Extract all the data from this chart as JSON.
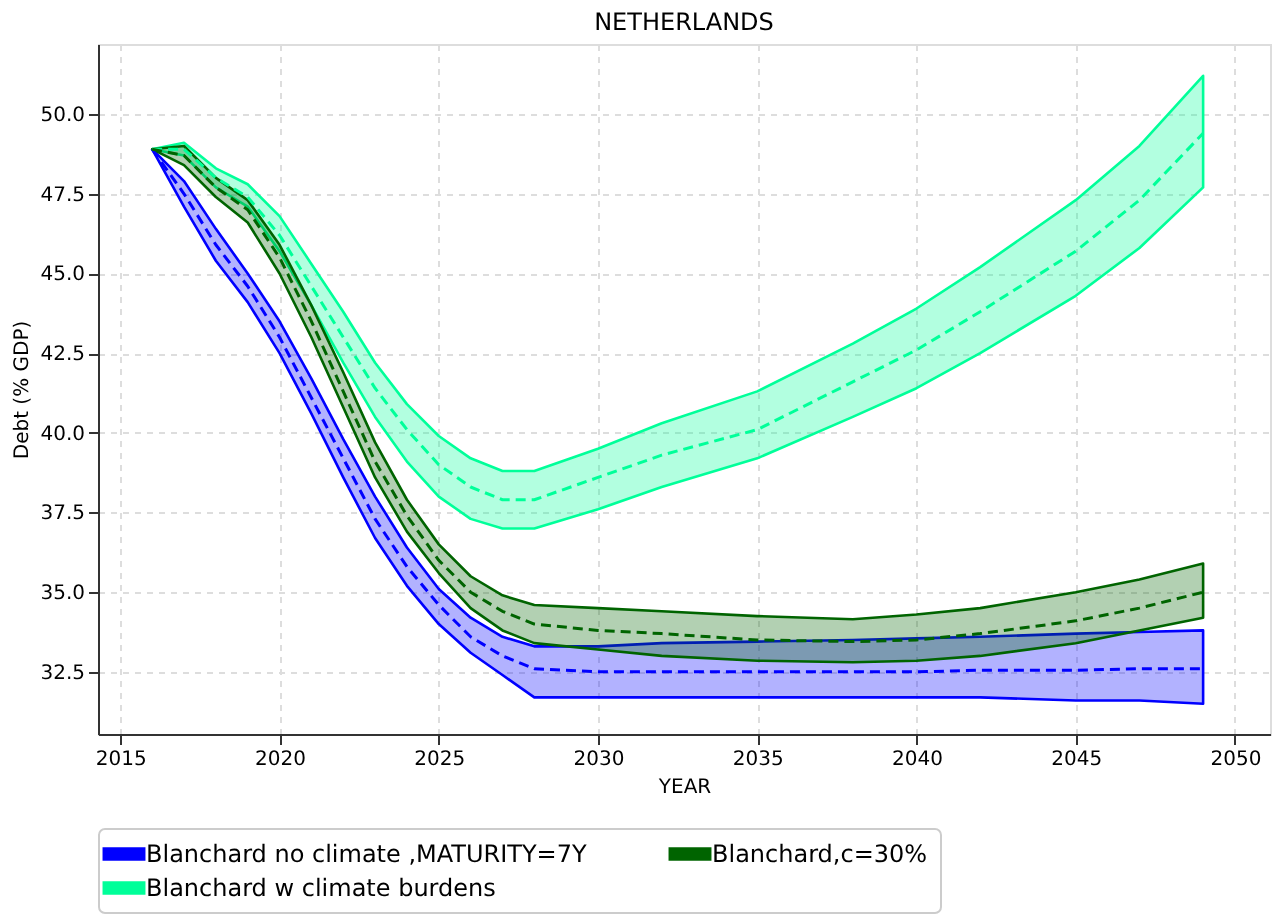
{
  "chart_data": {
    "type": "line",
    "title": "NETHERLANDS",
    "xlabel": "YEAR",
    "ylabel": "Debt (% GDP)",
    "x": [
      2016,
      2017,
      2018,
      2019,
      2020,
      2021,
      2022,
      2023,
      2024,
      2025,
      2026,
      2027,
      2028,
      2030,
      2032,
      2035,
      2038,
      2040,
      2042,
      2045,
      2047,
      2049
    ],
    "series": [
      {
        "name": "Blanchard no climate ,MATURITY=7Y",
        "color": "#0000ff",
        "line_style": "dashed",
        "values": [
          48.9,
          47.5,
          45.9,
          44.6,
          43.0,
          41.1,
          39.2,
          37.3,
          35.8,
          34.6,
          33.6,
          33.0,
          32.6,
          32.5,
          32.5,
          32.5,
          32.5,
          32.5,
          32.55,
          32.55,
          32.6,
          32.6
        ],
        "lower": [
          48.9,
          47.1,
          45.4,
          44.1,
          42.5,
          40.6,
          38.6,
          36.7,
          35.2,
          34.0,
          33.1,
          32.4,
          31.7,
          31.7,
          31.7,
          31.7,
          31.7,
          31.7,
          31.7,
          31.6,
          31.6,
          31.5
        ],
        "upper": [
          48.9,
          47.9,
          46.4,
          45.0,
          43.5,
          41.7,
          39.8,
          38.0,
          36.4,
          35.1,
          34.2,
          33.6,
          33.3,
          33.3,
          33.4,
          33.45,
          33.5,
          33.55,
          33.6,
          33.7,
          33.75,
          33.8
        ]
      },
      {
        "name": "Blanchard w climate burdens",
        "color": "#00ff99",
        "line_style": "dashed",
        "values": [
          48.9,
          48.9,
          48.0,
          47.4,
          46.2,
          44.6,
          43.0,
          41.4,
          40.1,
          39.0,
          38.3,
          37.9,
          37.9,
          38.6,
          39.3,
          40.1,
          41.6,
          42.6,
          43.8,
          45.7,
          47.3,
          49.4
        ],
        "lower": [
          48.9,
          48.7,
          47.7,
          47.1,
          45.7,
          44.0,
          42.2,
          40.5,
          39.1,
          38.0,
          37.3,
          37.0,
          37.0,
          37.6,
          38.3,
          39.2,
          40.5,
          41.4,
          42.5,
          44.3,
          45.8,
          47.7
        ],
        "upper": [
          48.9,
          49.1,
          48.3,
          47.8,
          46.8,
          45.3,
          43.8,
          42.2,
          40.9,
          39.9,
          39.2,
          38.8,
          38.8,
          39.5,
          40.3,
          41.3,
          42.8,
          43.9,
          45.2,
          47.3,
          49.0,
          51.2
        ]
      },
      {
        "name": "Blanchard,c=30%",
        "color": "#006400",
        "line_style": "dashed",
        "values": [
          48.9,
          48.7,
          47.7,
          47.0,
          45.5,
          43.5,
          41.3,
          39.1,
          37.4,
          36.0,
          35.0,
          34.4,
          34.0,
          33.8,
          33.7,
          33.5,
          33.45,
          33.5,
          33.7,
          34.1,
          34.5,
          35.0
        ],
        "lower": [
          48.9,
          48.4,
          47.4,
          46.6,
          45.0,
          43.0,
          40.8,
          38.6,
          36.9,
          35.6,
          34.5,
          33.8,
          33.4,
          33.2,
          33.0,
          32.85,
          32.8,
          32.85,
          33.0,
          33.4,
          33.8,
          34.2
        ],
        "upper": [
          48.9,
          49.0,
          48.0,
          47.3,
          45.9,
          44.0,
          41.9,
          39.7,
          37.9,
          36.5,
          35.5,
          34.9,
          34.6,
          34.5,
          34.4,
          34.25,
          34.15,
          34.3,
          34.5,
          35.0,
          35.4,
          35.9
        ]
      }
    ],
    "xlim": [
      2014.3,
      2051.1
    ],
    "xticks": [
      2015,
      2020,
      2025,
      2030,
      2035,
      2040,
      2045,
      2050
    ],
    "ylim": [
      30.55,
      52.2
    ],
    "yticks": [
      {
        "value": 32.5,
        "label": "32.5"
      },
      {
        "value": 35,
        "label": "35.0"
      },
      {
        "value": 37.5,
        "label": "37.5"
      },
      {
        "value": 40,
        "label": "40.0"
      },
      {
        "value": 42.5,
        "label": "42.5"
      },
      {
        "value": 45,
        "label": "45.0"
      },
      {
        "value": 47.5,
        "label": "47.5"
      },
      {
        "value": 50,
        "label": "50.0"
      }
    ],
    "grid": true,
    "legend": "bottom",
    "marker": "none"
  }
}
